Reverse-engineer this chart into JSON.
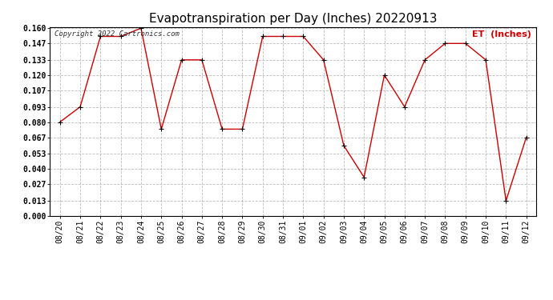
{
  "title": "Evapotranspiration per Day (Inches) 20220913",
  "copyright": "Copyright 2022 Cartronics.com",
  "legend_label": "ET  (Inches)",
  "dates": [
    "08/20",
    "08/21",
    "08/22",
    "08/23",
    "08/24",
    "08/25",
    "08/26",
    "08/27",
    "08/28",
    "08/29",
    "08/30",
    "08/31",
    "09/01",
    "09/02",
    "09/03",
    "09/04",
    "09/05",
    "09/06",
    "09/07",
    "09/08",
    "09/09",
    "09/10",
    "09/11",
    "09/12"
  ],
  "values": [
    0.08,
    0.093,
    0.153,
    0.153,
    0.16,
    0.074,
    0.133,
    0.133,
    0.074,
    0.074,
    0.153,
    0.153,
    0.153,
    0.133,
    0.06,
    0.033,
    0.12,
    0.093,
    0.133,
    0.147,
    0.147,
    0.133,
    0.013,
    0.067
  ],
  "ylim": [
    0.0,
    0.16
  ],
  "yticks": [
    0.0,
    0.013,
    0.027,
    0.04,
    0.053,
    0.067,
    0.08,
    0.093,
    0.107,
    0.12,
    0.133,
    0.147,
    0.16
  ],
  "line_color": "#cc0000",
  "marker_color": "#000000",
  "background_color": "#ffffff",
  "plot_bg_color": "#ffffff",
  "grid_color": "#bbbbbb",
  "title_fontsize": 11,
  "tick_fontsize": 7,
  "legend_color": "#cc0000",
  "copyright_color": "#333333",
  "border_color": "#000000"
}
